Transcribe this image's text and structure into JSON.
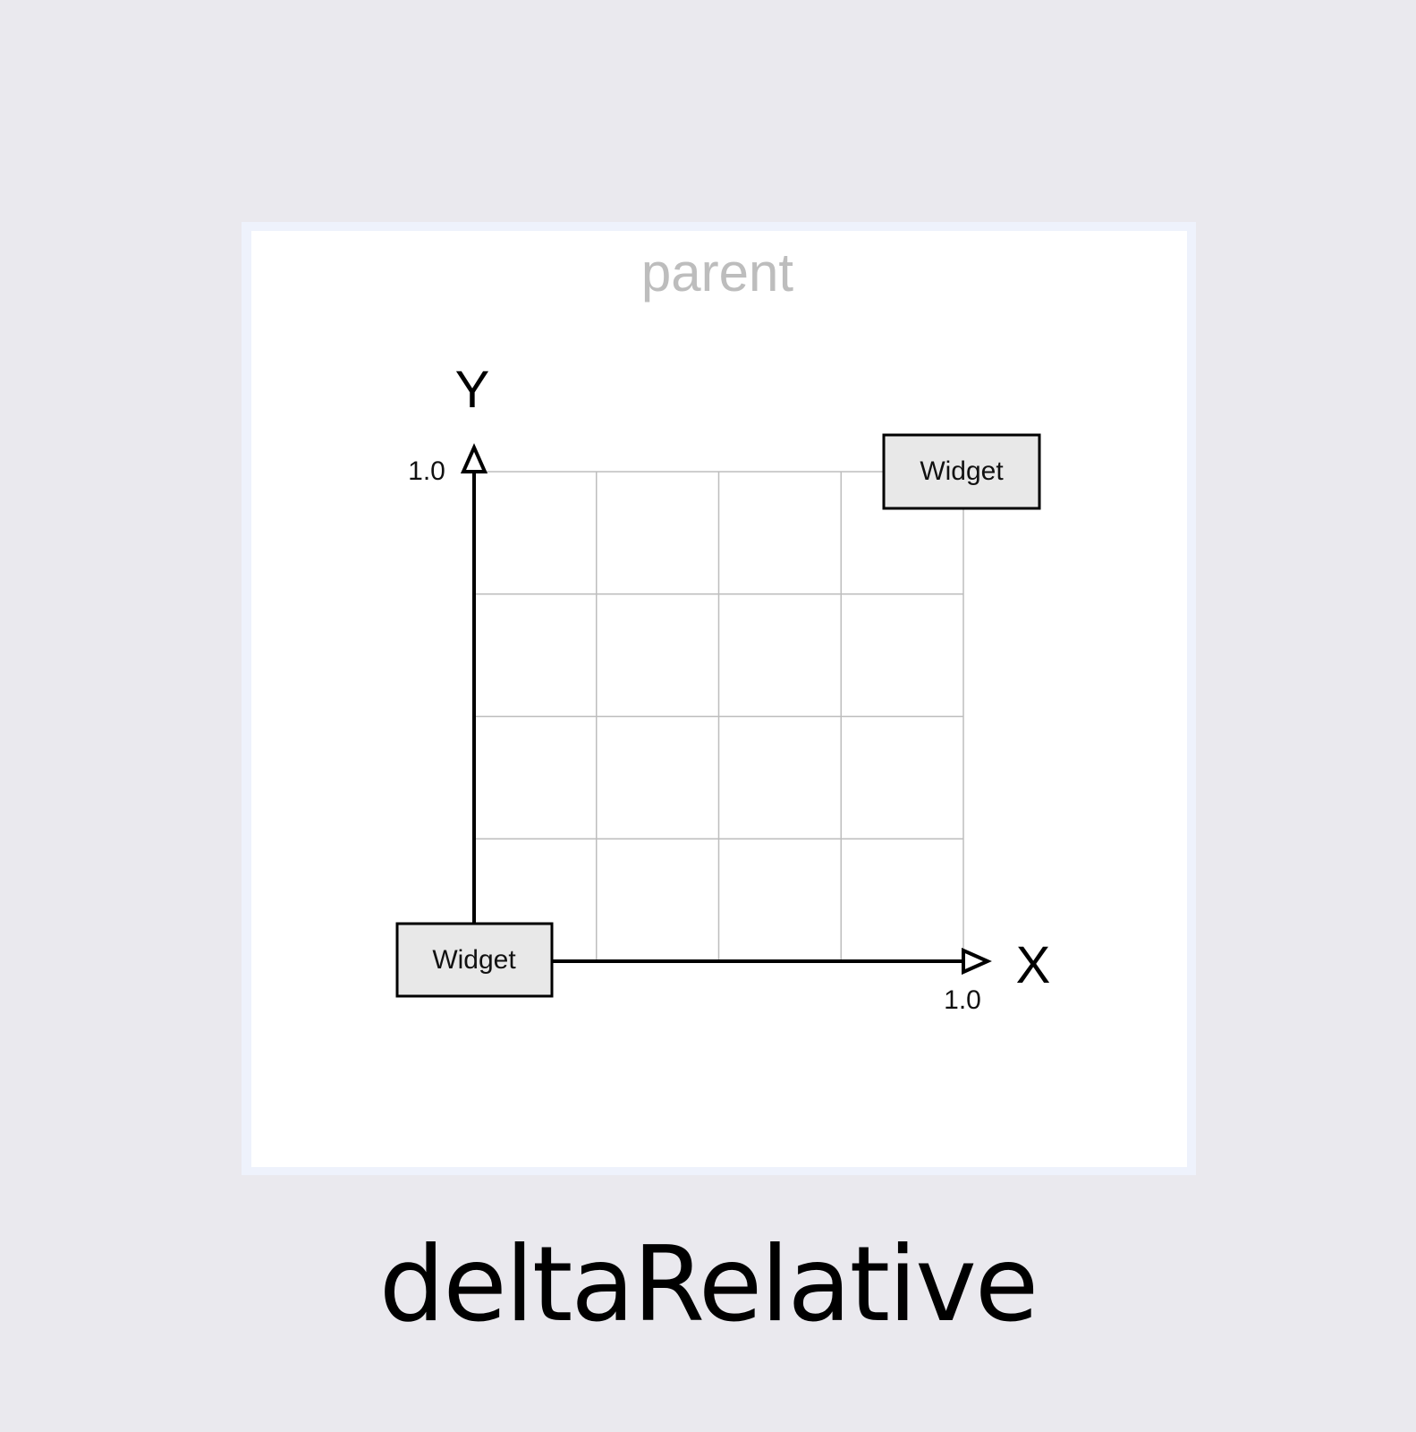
{
  "diagram": {
    "parent_label": "parent",
    "y_axis_label": "Y",
    "x_axis_label": "X",
    "y_tick_label": "1.0",
    "x_tick_label": "1.0",
    "widget_start_label": "Widget",
    "widget_end_label": "Widget",
    "grid_divisions": 4
  },
  "caption": "deltaRelative",
  "colors": {
    "background": "#eae9ee",
    "frame": "#eef2fc",
    "widget_fill": "#e8e8e8",
    "grid": "#bdbdbd",
    "parent_label": "#bdbdbd"
  }
}
